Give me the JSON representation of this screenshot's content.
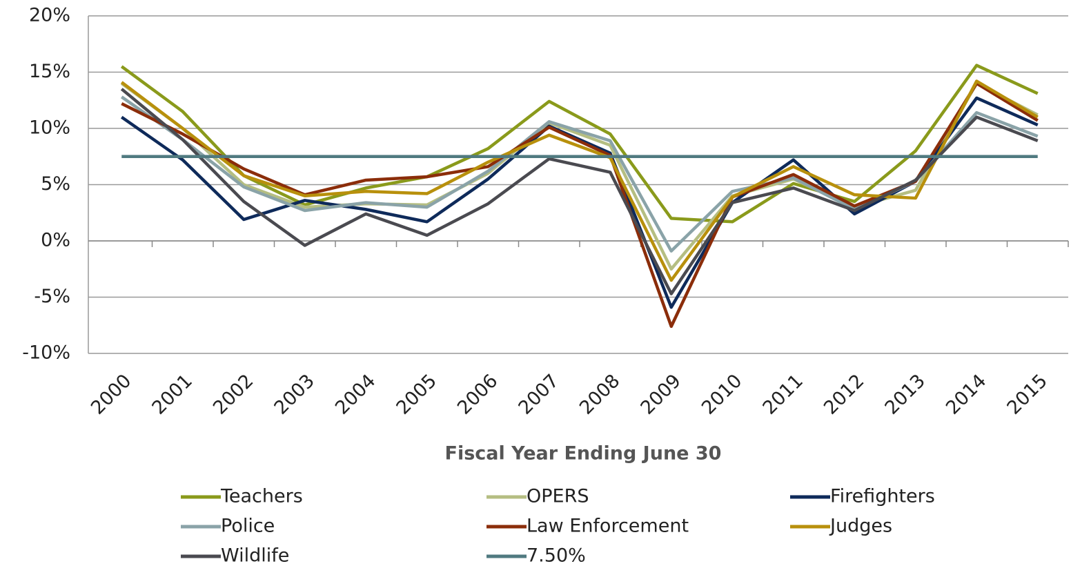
{
  "chart_data": {
    "type": "line",
    "xlabel": "Fiscal Year Ending June 30",
    "categories": [
      "2000",
      "2001",
      "2002",
      "2003",
      "2004",
      "2005",
      "2006",
      "2007",
      "2008",
      "2009",
      "2010",
      "2011",
      "2012",
      "2013",
      "2014",
      "2015"
    ],
    "series": [
      {
        "name": "Teachers",
        "color": "#8a9a1b",
        "values": [
          15.5,
          11.5,
          5.8,
          3.2,
          4.7,
          5.7,
          8.2,
          12.4,
          9.5,
          2.0,
          1.7,
          5.1,
          3.5,
          8.0,
          15.6,
          13.1
        ]
      },
      {
        "name": "OPERS",
        "color": "#b5be82",
        "values": [
          14.0,
          10.0,
          5.0,
          3.0,
          3.3,
          3.2,
          6.0,
          10.5,
          8.5,
          -2.5,
          4.0,
          5.5,
          3.0,
          4.5,
          14.0,
          11.2
        ]
      },
      {
        "name": "Firefighters",
        "color": "#0e2a5a",
        "values": [
          11.0,
          7.2,
          1.9,
          3.6,
          2.8,
          1.7,
          5.5,
          10.2,
          7.8,
          -5.9,
          3.4,
          7.2,
          2.4,
          5.3,
          12.7,
          10.3
        ]
      },
      {
        "name": "Police",
        "color": "#8aa3a8",
        "values": [
          12.8,
          9.0,
          4.8,
          2.7,
          3.4,
          3.0,
          6.2,
          10.6,
          8.9,
          -0.9,
          4.4,
          5.6,
          2.8,
          5.3,
          11.4,
          9.3
        ]
      },
      {
        "name": "Law Enforcement",
        "color": "#8b2d0a",
        "values": [
          12.2,
          9.5,
          6.4,
          4.1,
          5.4,
          5.7,
          6.6,
          10.1,
          7.6,
          -7.6,
          3.9,
          5.9,
          3.1,
          5.3,
          14.0,
          10.7
        ]
      },
      {
        "name": "Judges",
        "color": "#b8900c",
        "values": [
          14.1,
          10.0,
          5.8,
          4.0,
          4.4,
          4.2,
          7.0,
          9.4,
          7.4,
          -3.5,
          3.9,
          6.6,
          4.1,
          3.8,
          14.2,
          11.0
        ]
      },
      {
        "name": "Wildlife",
        "color": "#4a4a50",
        "values": [
          13.5,
          9.0,
          3.5,
          -0.4,
          2.4,
          0.5,
          3.3,
          7.3,
          6.1,
          -4.7,
          3.4,
          4.7,
          2.7,
          5.4,
          11.0,
          8.9
        ]
      },
      {
        "name": "7.50%",
        "color": "#507a80",
        "values": [
          7.5,
          7.5,
          7.5,
          7.5,
          7.5,
          7.5,
          7.5,
          7.5,
          7.5,
          7.5,
          7.5,
          7.5,
          7.5,
          7.5,
          7.5,
          7.5
        ]
      }
    ],
    "ylim": [
      -10,
      20
    ],
    "yticks": [
      {
        "value": -10,
        "label": "-10%"
      },
      {
        "value": -5,
        "label": "-5%"
      },
      {
        "value": 0,
        "label": "0%"
      },
      {
        "value": 5,
        "label": "5%"
      },
      {
        "value": 10,
        "label": "10%"
      },
      {
        "value": 15,
        "label": "15%"
      },
      {
        "value": 20,
        "label": "20%"
      }
    ],
    "grid": true,
    "legend": "bottom"
  }
}
